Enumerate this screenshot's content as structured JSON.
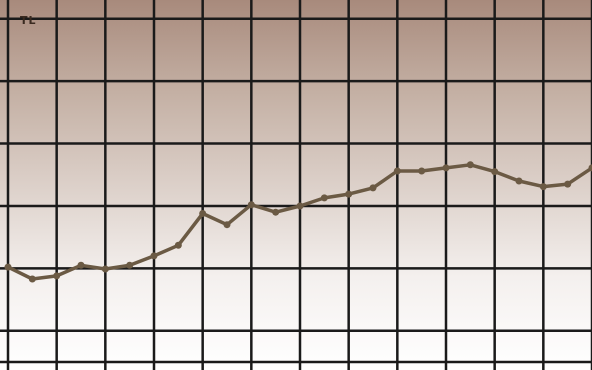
{
  "chart_data": {
    "type": "line",
    "y_unit_label": "TL",
    "grid": true,
    "background_gradient": [
      "#a88a7c",
      "#c4b0a4",
      "#f4f0ee",
      "#ffffff"
    ],
    "line_color": "#6b5a44",
    "grid_color": "#1a1a1a",
    "x": [
      0,
      1,
      2,
      3,
      4,
      5,
      6,
      7,
      8,
      9,
      10,
      11,
      12,
      13,
      14,
      15,
      16,
      17,
      18,
      19,
      20,
      21,
      22,
      23,
      24
    ],
    "series": [
      {
        "values": [
          30.2,
          28.3,
          28.8,
          30.5,
          29.9,
          30.5,
          32.0,
          33.7,
          38.8,
          37.0,
          40.2,
          39.0,
          40.0,
          41.3,
          41.9,
          42.9,
          45.6,
          45.6,
          46.1,
          46.6,
          45.5,
          44.0,
          43.1,
          43.5,
          46.1
        ]
      }
    ],
    "ylim": [
      15,
      73
    ],
    "y_grid_values": [
      20,
      30,
      40,
      50,
      60,
      70
    ],
    "x_grid_values": [
      2,
      4,
      6,
      8,
      10,
      12,
      14,
      16,
      18,
      20,
      22,
      24
    ]
  }
}
